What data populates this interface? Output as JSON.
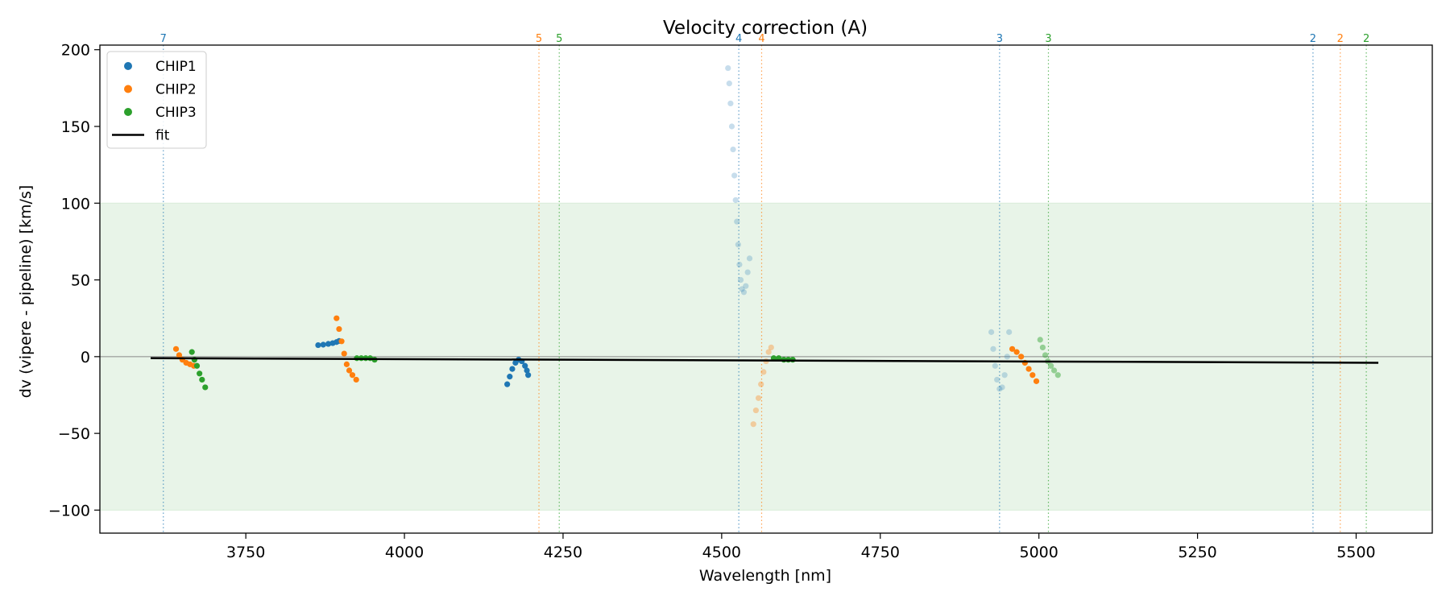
{
  "chart_data": {
    "type": "scatter",
    "title": "Velocity correction (A)",
    "xlabel": "Wavelength [nm]",
    "ylabel": "dv (vipere - pipeline) [km/s]",
    "xlim": [
      3520,
      5620
    ],
    "ylim": [
      -115,
      203
    ],
    "x_ticks": [
      3750,
      4000,
      4250,
      4500,
      4750,
      5000,
      5250,
      5500
    ],
    "x_tick_labels": [
      "3750",
      "4000",
      "4250",
      "4500",
      "4750",
      "5000",
      "5250",
      "5500"
    ],
    "y_ticks": [
      -100,
      -50,
      0,
      50,
      100,
      150,
      200
    ],
    "y_tick_labels": [
      "−100",
      "−50",
      "0",
      "50",
      "100",
      "150",
      "200"
    ],
    "accept_band": [
      -100,
      100
    ],
    "zero_line": 0,
    "legend": {
      "position": "upper-left",
      "entries": [
        {
          "label": "CHIP1",
          "marker": "dot",
          "color": "#1f77b4"
        },
        {
          "label": "CHIP2",
          "marker": "dot",
          "color": "#ff7f0e"
        },
        {
          "label": "CHIP3",
          "marker": "dot",
          "color": "#2ca02c"
        },
        {
          "label": "fit",
          "marker": "line",
          "color": "#000000"
        }
      ]
    },
    "colors": {
      "CHIP1": "#1f77b4",
      "CHIP2": "#ff7f0e",
      "CHIP3": "#2ca02c",
      "fit": "#000000",
      "band": "#e8f4e8"
    },
    "series": [
      {
        "name": "CHIP1",
        "color": "#1f77b4",
        "segments": [
          {
            "opacity": 1.0,
            "points": [
              [
                3864,
                7.5
              ],
              [
                3872,
                7.8
              ],
              [
                3880,
                8.3
              ],
              [
                3887,
                8.8
              ],
              [
                3893,
                9.5
              ],
              [
                3897,
                10.2
              ]
            ]
          },
          {
            "opacity": 1.0,
            "points": [
              [
                4162,
                -18
              ],
              [
                4166,
                -13
              ],
              [
                4170,
                -8
              ],
              [
                4175,
                -4
              ],
              [
                4180,
                -2
              ],
              [
                4185,
                -3
              ],
              [
                4190,
                -6
              ],
              [
                4193,
                -9
              ],
              [
                4195,
                -12
              ]
            ]
          },
          {
            "opacity": 0.25,
            "points": [
              [
                4510,
                188
              ],
              [
                4512,
                178
              ],
              [
                4514,
                165
              ],
              [
                4516,
                150
              ],
              [
                4518,
                135
              ],
              [
                4520,
                118
              ],
              [
                4522,
                102
              ],
              [
                4524,
                88
              ],
              [
                4526,
                73
              ],
              [
                4528,
                60
              ],
              [
                4530,
                50
              ],
              [
                4532,
                44
              ],
              [
                4535,
                42
              ],
              [
                4538,
                46
              ],
              [
                4541,
                55
              ],
              [
                4544,
                64
              ]
            ]
          },
          {
            "opacity": 0.25,
            "points": [
              [
                4925,
                16
              ],
              [
                4928,
                5
              ],
              [
                4931,
                -6
              ],
              [
                4934,
                -15
              ],
              [
                4938,
                -21
              ],
              [
                4942,
                -20
              ],
              [
                4946,
                -12
              ],
              [
                4950,
                0
              ],
              [
                4953,
                16
              ]
            ]
          }
        ]
      },
      {
        "name": "CHIP2",
        "color": "#ff7f0e",
        "segments": [
          {
            "opacity": 1.0,
            "points": [
              [
                3640,
                5
              ],
              [
                3645,
                1
              ],
              [
                3650,
                -2
              ],
              [
                3656,
                -4
              ],
              [
                3662,
                -5
              ],
              [
                3668,
                -6
              ]
            ]
          },
          {
            "opacity": 1.0,
            "points": [
              [
                3893,
                25
              ],
              [
                3897,
                18
              ],
              [
                3901,
                10
              ],
              [
                3905,
                2
              ],
              [
                3909,
                -5
              ],
              [
                3913,
                -9
              ],
              [
                3918,
                -12
              ],
              [
                3924,
                -15
              ]
            ]
          },
          {
            "opacity": 0.35,
            "points": [
              [
                4550,
                -44
              ],
              [
                4554,
                -35
              ],
              [
                4558,
                -27
              ],
              [
                4562,
                -18
              ],
              [
                4566,
                -10
              ],
              [
                4570,
                -3
              ],
              [
                4574,
                3
              ],
              [
                4578,
                6
              ]
            ]
          },
          {
            "opacity": 1.0,
            "points": [
              [
                4958,
                5
              ],
              [
                4965,
                3
              ],
              [
                4972,
                0
              ],
              [
                4978,
                -4
              ],
              [
                4984,
                -8
              ],
              [
                4990,
                -12
              ],
              [
                4996,
                -16
              ]
            ]
          }
        ]
      },
      {
        "name": "CHIP3",
        "color": "#2ca02c",
        "segments": [
          {
            "opacity": 1.0,
            "points": [
              [
                3665,
                3
              ],
              [
                3669,
                -2
              ],
              [
                3673,
                -6
              ],
              [
                3677,
                -11
              ],
              [
                3681,
                -15
              ],
              [
                3686,
                -20
              ]
            ]
          },
          {
            "opacity": 1.0,
            "points": [
              [
                3925,
                -1
              ],
              [
                3932,
                -1
              ],
              [
                3939,
                -1
              ],
              [
                3946,
                -1
              ],
              [
                3953,
                -2
              ]
            ]
          },
          {
            "opacity": 1.0,
            "points": [
              [
                4582,
                -1
              ],
              [
                4590,
                -1
              ],
              [
                4598,
                -2
              ],
              [
                4605,
                -2
              ],
              [
                4612,
                -2
              ]
            ]
          },
          {
            "opacity": 0.45,
            "points": [
              [
                5002,
                11
              ],
              [
                5006,
                6
              ],
              [
                5010,
                1
              ],
              [
                5014,
                -3
              ],
              [
                5019,
                -6
              ],
              [
                5024,
                -9
              ],
              [
                5030,
                -12
              ]
            ]
          }
        ]
      }
    ],
    "fit_line": {
      "x": [
        3600,
        5535
      ],
      "y": [
        -1,
        -4
      ]
    },
    "order_markers": [
      {
        "label": "7",
        "x": 3620,
        "color": "#1f77b4"
      },
      {
        "label": "5",
        "x": 4212,
        "color": "#ff7f0e"
      },
      {
        "label": "5",
        "x": 4244,
        "color": "#2ca02c"
      },
      {
        "label": "4",
        "x": 4527,
        "color": "#1f77b4"
      },
      {
        "label": "4",
        "x": 4563,
        "color": "#ff7f0e"
      },
      {
        "label": "3",
        "x": 4938,
        "color": "#1f77b4"
      },
      {
        "label": "3",
        "x": 5015,
        "color": "#2ca02c"
      },
      {
        "label": "2",
        "x": 5432,
        "color": "#1f77b4"
      },
      {
        "label": "2",
        "x": 5475,
        "color": "#ff7f0e"
      },
      {
        "label": "2",
        "x": 5516,
        "color": "#2ca02c"
      }
    ]
  }
}
